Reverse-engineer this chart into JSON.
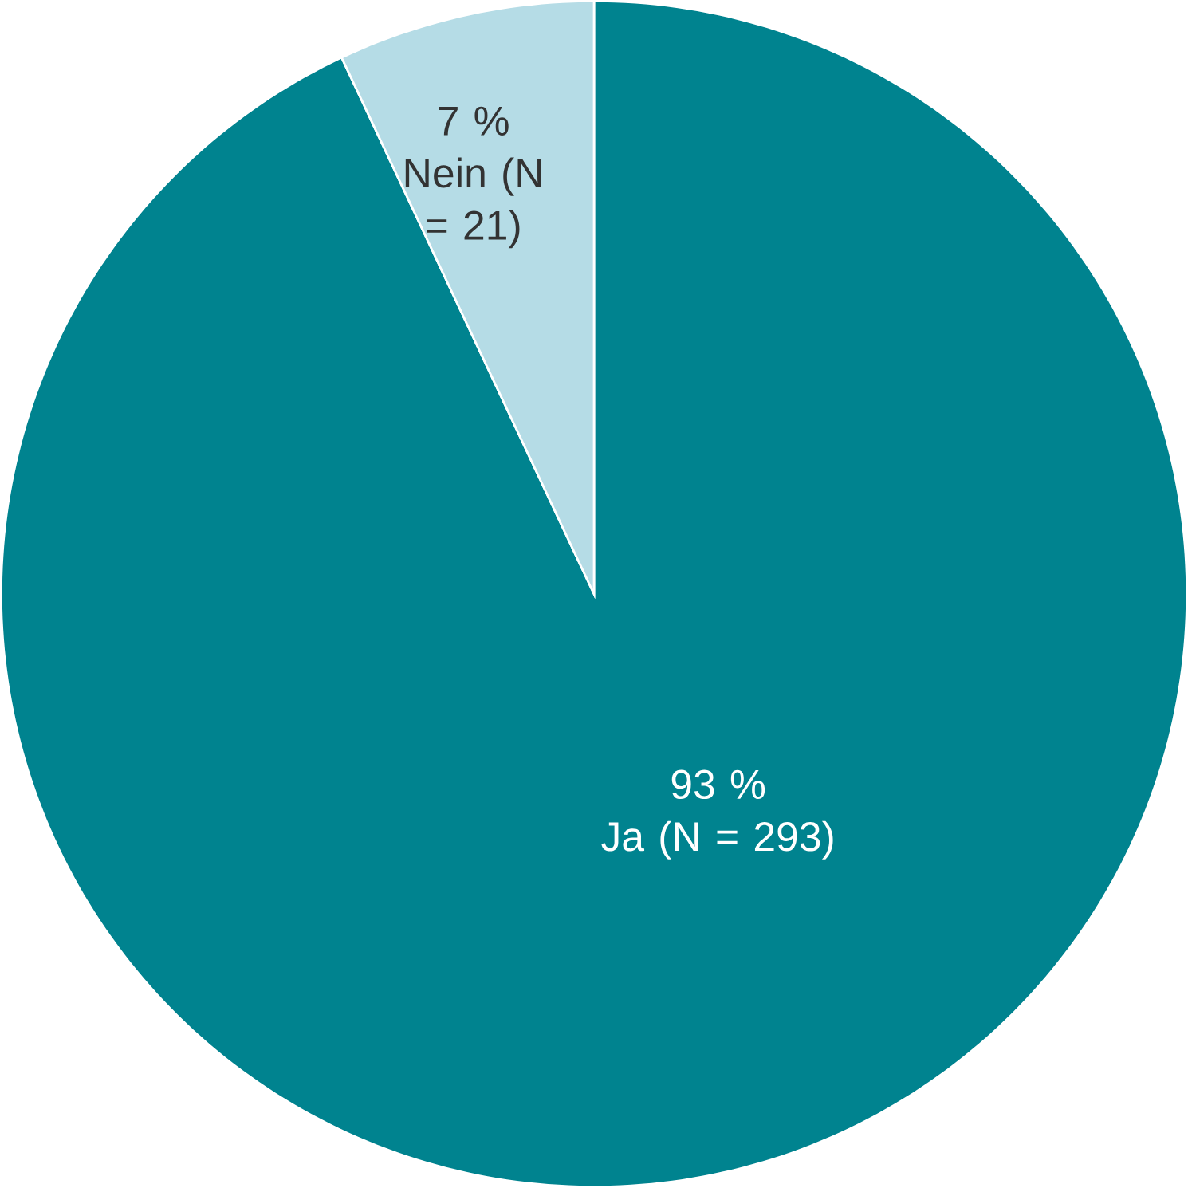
{
  "chart_data": {
    "type": "pie",
    "categories": [
      "Ja (N = 293)",
      "Nein (N = 21)"
    ],
    "values": [
      93,
      7
    ],
    "value_labels": [
      "93 %",
      "7 %"
    ],
    "colors": [
      "#00838f",
      "#b5dce6"
    ]
  }
}
